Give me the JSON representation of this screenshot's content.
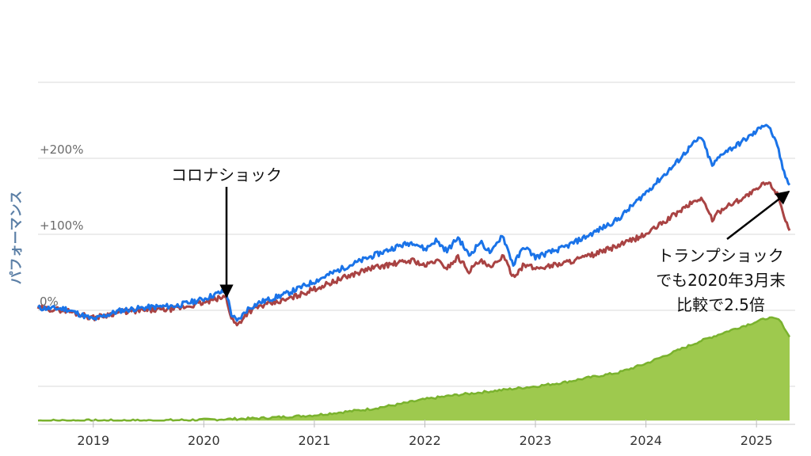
{
  "chart_data": {
    "type": "line",
    "ylabel": "パフォーマンス",
    "y_ticks": [
      "0%",
      "+100%",
      "+200%"
    ],
    "x_ticks": [
      "2019",
      "2020",
      "2021",
      "2022",
      "2023",
      "2024",
      "2025"
    ],
    "xlim": [
      2018.5,
      2025.35
    ],
    "ylim": [
      -145,
      310
    ],
    "grid": true,
    "colors": {
      "blue": "#1a73e8",
      "red": "#a94343",
      "green_fill": "#9ec94e",
      "green_line": "#7ab22e",
      "grid": "#d9d9d9"
    },
    "series": [
      {
        "color": "blue",
        "x": [
          2018.5,
          2018.75,
          2019.0,
          2019.25,
          2019.5,
          2019.75,
          2020.0,
          2020.12,
          2020.2,
          2020.25,
          2020.3,
          2020.4,
          2020.5,
          2020.75,
          2021.0,
          2021.25,
          2021.5,
          2021.75,
          2021.9,
          2022.0,
          2022.1,
          2022.2,
          2022.3,
          2022.4,
          2022.5,
          2022.6,
          2022.7,
          2022.8,
          2022.9,
          2023.0,
          2023.25,
          2023.5,
          2023.75,
          2024.0,
          2024.25,
          2024.4,
          2024.5,
          2024.6,
          2024.7,
          2024.8,
          2025.0,
          2025.05,
          2025.1,
          2025.15,
          2025.2,
          2025.25,
          2025.3
        ],
        "values": [
          3,
          2,
          -12,
          0,
          4,
          6,
          15,
          22,
          26,
          -5,
          -15,
          2,
          10,
          22,
          38,
          55,
          70,
          84,
          90,
          80,
          92,
          78,
          96,
          72,
          90,
          75,
          100,
          60,
          84,
          70,
          82,
          100,
          120,
          155,
          190,
          215,
          228,
          190,
          208,
          215,
          235,
          244,
          244,
          230,
          210,
          180,
          165
        ]
      },
      {
        "color": "red",
        "x": [
          2018.5,
          2018.75,
          2019.0,
          2019.25,
          2019.5,
          2019.75,
          2020.0,
          2020.12,
          2020.2,
          2020.25,
          2020.3,
          2020.4,
          2020.5,
          2020.75,
          2021.0,
          2021.25,
          2021.5,
          2021.75,
          2021.9,
          2022.0,
          2022.1,
          2022.2,
          2022.3,
          2022.4,
          2022.5,
          2022.6,
          2022.7,
          2022.8,
          2022.9,
          2023.0,
          2023.25,
          2023.5,
          2023.75,
          2024.0,
          2024.25,
          2024.4,
          2024.5,
          2024.6,
          2024.7,
          2024.8,
          2025.0,
          2025.05,
          2025.1,
          2025.15,
          2025.2,
          2025.25,
          2025.3
        ],
        "values": [
          3,
          0,
          -10,
          -2,
          0,
          2,
          10,
          15,
          18,
          -10,
          -20,
          -2,
          5,
          14,
          28,
          42,
          55,
          62,
          66,
          58,
          66,
          56,
          70,
          52,
          65,
          55,
          72,
          45,
          60,
          55,
          62,
          72,
          85,
          100,
          125,
          140,
          148,
          120,
          135,
          142,
          158,
          165,
          168,
          162,
          150,
          125,
          105
        ]
      },
      {
        "color": "green",
        "x": [
          2018.5,
          2019.0,
          2019.5,
          2020.0,
          2020.5,
          2021.0,
          2021.5,
          2021.75,
          2022.0,
          2022.25,
          2022.5,
          2022.75,
          2023.0,
          2023.25,
          2023.5,
          2023.75,
          2024.0,
          2024.25,
          2024.5,
          2024.75,
          2025.0,
          2025.1,
          2025.2,
          2025.25,
          2025.3
        ],
        "values": [
          -145,
          -145,
          -145,
          -144,
          -142,
          -138,
          -130,
          -124,
          -117,
          -112,
          -108,
          -104,
          -100,
          -95,
          -88,
          -82,
          -70,
          -55,
          -40,
          -27,
          -15,
          -10,
          -12,
          -22,
          -35
        ]
      }
    ],
    "annotations": [
      {
        "text": "コロナショック",
        "at": [
          2020.22,
          -10
        ]
      },
      {
        "lines": [
          "トランプショック",
          "でも2020年3月末",
          "比較で2.5倍"
        ],
        "at": [
          2025.28,
          160
        ]
      }
    ]
  }
}
